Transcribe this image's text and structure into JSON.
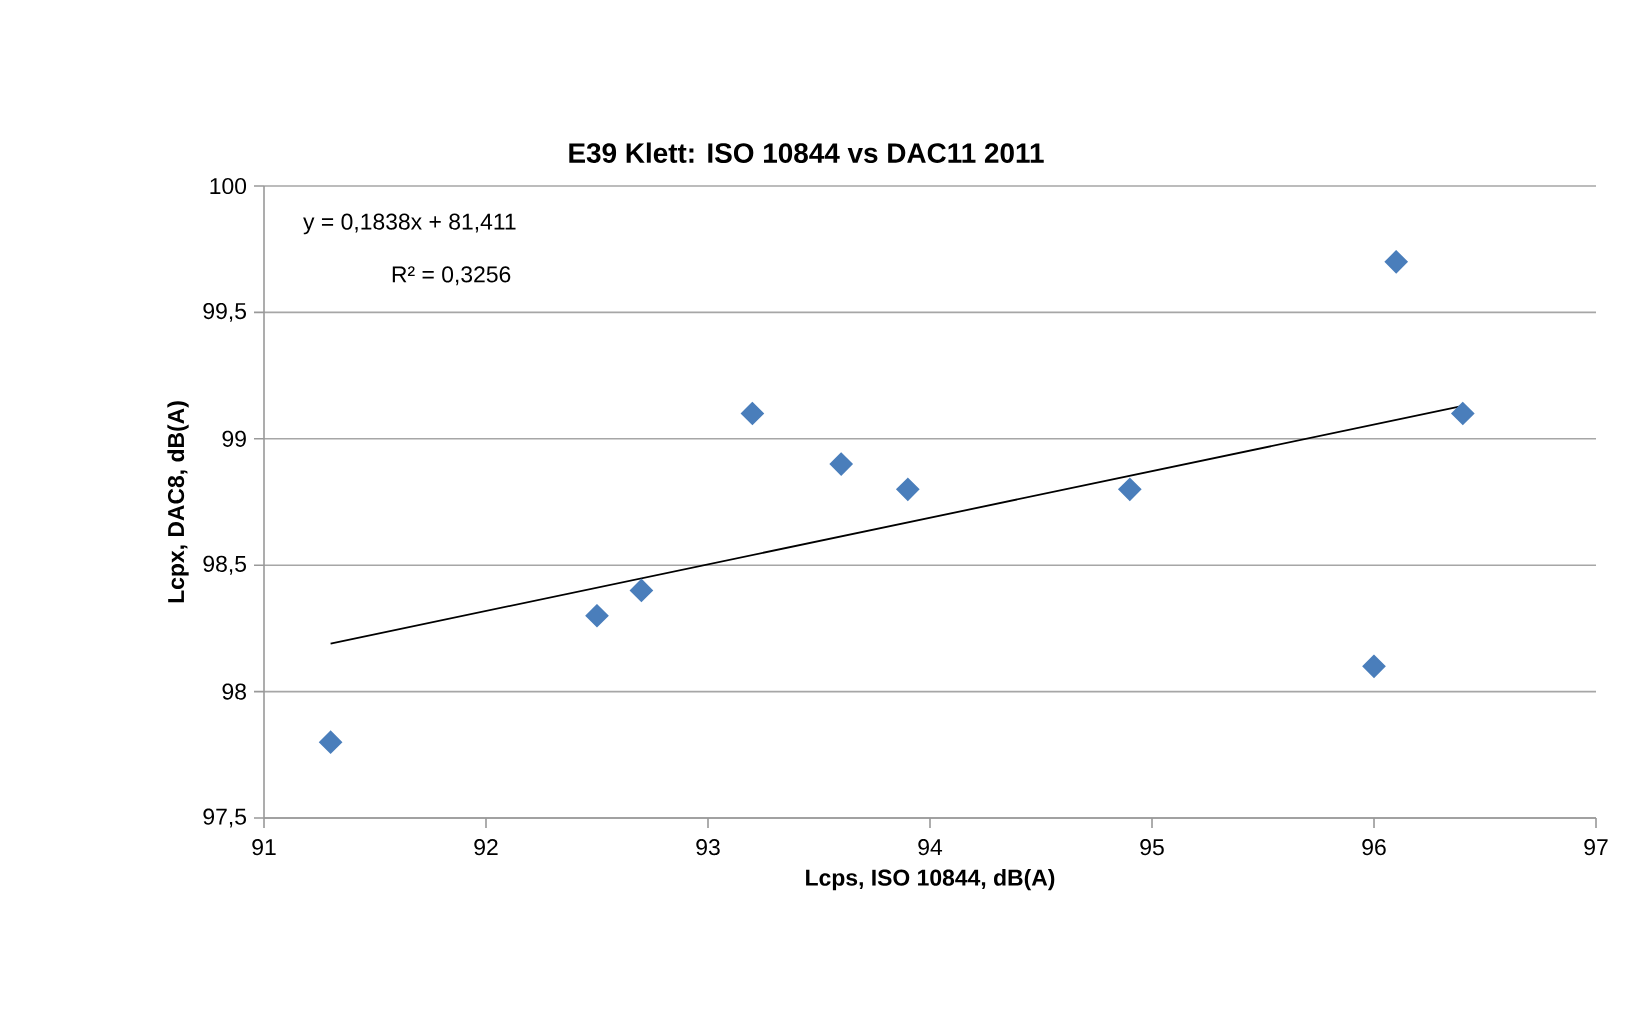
{
  "chart_data": {
    "type": "scatter",
    "title": "E39 Klett: ISO 10844 vs DAC11 2011",
    "xlabel": "Lcps, ISO 10844, dB(A)",
    "ylabel": "Lcpx, DAC8, dB(A)",
    "annotations": [
      "y = 0,1838x + 81,411",
      "R² = 0,3256"
    ],
    "series": [
      {
        "color": "#4a7ebb",
        "x": [
          91.3,
          92.5,
          92.7,
          93.2,
          93.6,
          93.9,
          94.9,
          96.0,
          96.1,
          96.4
        ],
        "values": [
          97.8,
          98.3,
          98.4,
          99.1,
          98.9,
          98.8,
          98.8,
          98.1,
          99.7,
          99.1
        ]
      },
      {
        "type": "line",
        "color": "#000000",
        "marker": "none",
        "x": [
          91.3,
          96.4
        ],
        "values": [
          98.19,
          99.13
        ]
      }
    ],
    "marker": "diamond",
    "grid": "y",
    "xlim": [
      91,
      97
    ],
    "ylim": [
      97.5,
      100
    ],
    "xticks": [
      91,
      92,
      93,
      94,
      95,
      96,
      97
    ],
    "yticks": [
      {
        "value": 97.5,
        "label": "97,5"
      },
      98,
      {
        "value": 98.5,
        "label": "98,5"
      },
      99,
      {
        "value": 99.5,
        "label": "99,5"
      },
      100
    ]
  }
}
